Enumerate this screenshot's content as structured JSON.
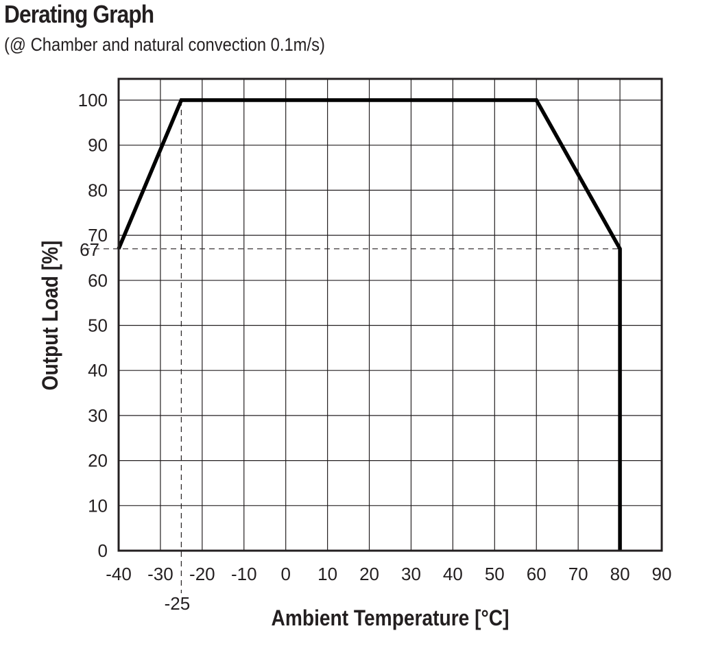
{
  "header": {
    "title": "Derating Graph",
    "subtitle": "(@ Chamber and natural convection 0.1m/s)"
  },
  "chart_data": {
    "type": "line",
    "title": "Derating Graph",
    "subtitle": "(@ Chamber and natural convection 0.1m/s)",
    "xlabel": "Ambient Temperature [°C]",
    "ylabel": "Output Load [%]",
    "xlim": [
      -40,
      90
    ],
    "ylim": [
      0,
      105
    ],
    "xticks": [
      -40,
      -30,
      -20,
      -10,
      0,
      10,
      20,
      30,
      40,
      50,
      60,
      70,
      80,
      90
    ],
    "yticks": [
      0,
      10,
      20,
      30,
      40,
      50,
      60,
      70,
      80,
      90,
      100
    ],
    "grid": true,
    "series": [
      {
        "x": [
          -40,
          -25,
          60,
          80,
          80
        ],
        "y": [
          67,
          100,
          100,
          67,
          0
        ]
      }
    ],
    "annotations": [
      {
        "label": "-25",
        "axis": "x",
        "value": -25
      },
      {
        "label": "67",
        "axis": "y",
        "value": 67
      }
    ],
    "colors": {
      "line": "#000000",
      "grid": "#231f20"
    }
  }
}
